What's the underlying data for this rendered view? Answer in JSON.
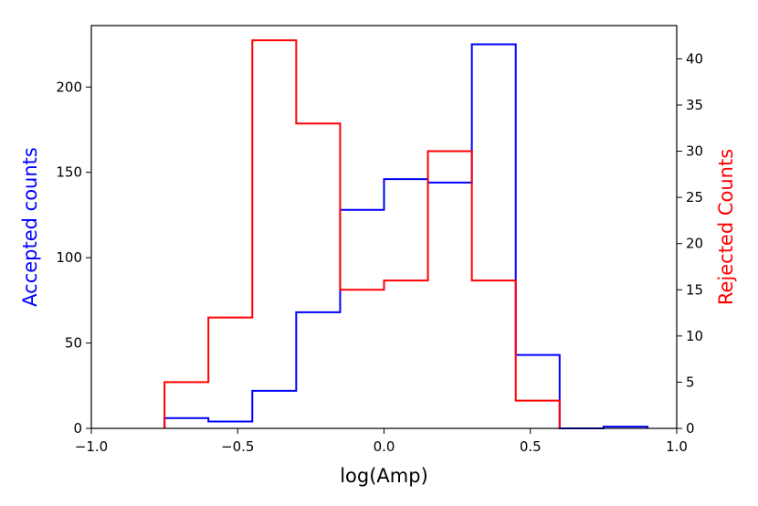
{
  "chart_data": {
    "type": "histogram",
    "title": "",
    "xlabel": "log(Amp)",
    "ylabel_left": "Accepted counts",
    "ylabel_right": "Rejected Counts",
    "xlim": [
      -1.0,
      1.0
    ],
    "ylim_left": [
      0,
      236
    ],
    "ylim_right": [
      0,
      43.6
    ],
    "x_ticks": [
      "−1.0",
      "−0.5",
      "0.0",
      "0.5",
      "1.0"
    ],
    "left_y_ticks": [
      "0",
      "50",
      "100",
      "150",
      "200"
    ],
    "right_y_ticks": [
      "0",
      "5",
      "10",
      "15",
      "20",
      "25",
      "30",
      "35",
      "40"
    ],
    "grid": false,
    "series": [
      {
        "name": "Accepted counts",
        "axis": "left",
        "color": "#0000ff",
        "bin_edges": [
          -0.75,
          -0.6,
          -0.45,
          -0.3,
          -0.15,
          0.0,
          0.15,
          0.3,
          0.45,
          0.6,
          0.75,
          0.9
        ],
        "counts": [
          6,
          4,
          22,
          68,
          128,
          146,
          144,
          225,
          43,
          0,
          1
        ]
      },
      {
        "name": "Rejected Counts",
        "axis": "right",
        "color": "#ff0000",
        "bin_edges": [
          -0.75,
          -0.6,
          -0.45,
          -0.3,
          -0.15,
          0.0,
          0.15,
          0.3,
          0.45,
          0.6
        ],
        "counts": [
          5,
          12,
          42,
          33,
          15,
          16,
          30,
          16,
          3
        ]
      }
    ]
  }
}
